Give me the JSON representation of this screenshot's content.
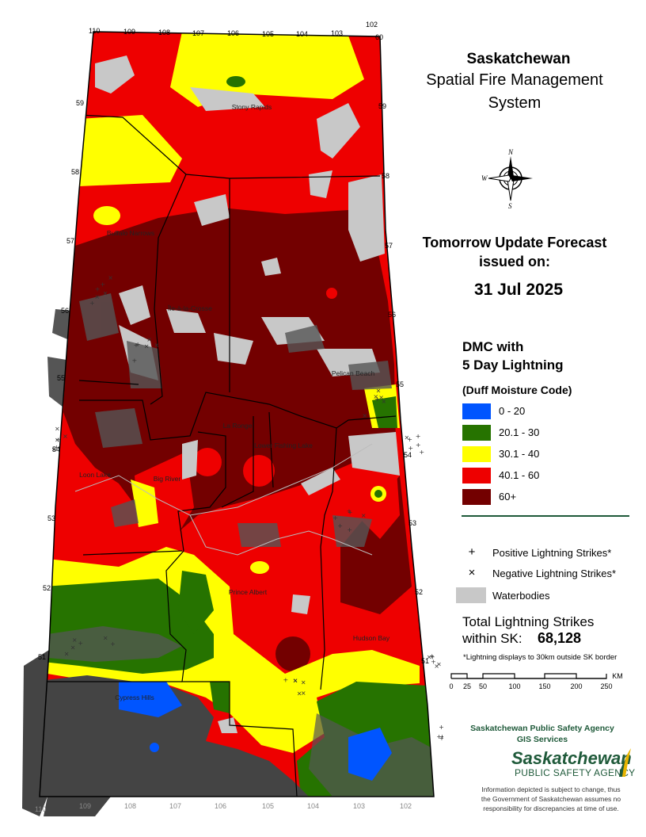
{
  "title": {
    "line1": "Saskatchewan",
    "line2": "Spatial Fire Management",
    "line3": "System"
  },
  "forecast": {
    "line1": "Tomorrow Update Forecast",
    "line2": "issued on:",
    "date": "31 Jul 2025"
  },
  "legend": {
    "heading1": "DMC with",
    "heading2": "5 Day Lightning",
    "subheading": "(Duff Moisture Code)",
    "classes": [
      {
        "label": "0 - 20",
        "color": "#0055ff"
      },
      {
        "label": "20.1 - 30",
        "color": "#267300"
      },
      {
        "label": "30.1 - 40",
        "color": "#ffff00"
      },
      {
        "label": "40.1 - 60",
        "color": "#ee0000"
      },
      {
        "label": "60+",
        "color": "#730000"
      }
    ],
    "positive_symbol": "+",
    "positive_label": "Positive Lightning Strikes*",
    "negative_symbol": "×",
    "negative_label": "Negative Lightning Strikes*",
    "waterbodies_label": "Waterbodies",
    "waterbody_color": "#c8c8c8"
  },
  "totals": {
    "label1": "Total Lightning Strikes",
    "label2": "within SK:",
    "value": "68,128",
    "note": "*Lightning displays to 30km outside SK border"
  },
  "scale": {
    "ticks": [
      "0",
      "25",
      "50",
      "100",
      "150",
      "200",
      "250"
    ],
    "unit": "KM"
  },
  "compass": {
    "n": "N",
    "w": "W",
    "s": "S"
  },
  "organization": {
    "line1": "Saskatchewan Public Safety Agency",
    "line2": "GIS  Services",
    "logo_line1": "Saskatchewan",
    "logo_line2": "PUBLIC SAFETY AGENCY"
  },
  "disclaimer": {
    "line1": "Information depicted is subject to change, thus",
    "line2": "the Government of Saskatchewan assumes no",
    "line3": "responsibility for discrepancies at time of use."
  },
  "map": {
    "longitudes_top": [
      "110",
      "109",
      "108",
      "107",
      "106",
      "105",
      "104",
      "103",
      "102"
    ],
    "longitudes_bottom": [
      "110",
      "109",
      "108",
      "107",
      "106",
      "105",
      "104",
      "103",
      "102"
    ],
    "corner_top_right": "60",
    "latitudes_left": [
      "59",
      "58",
      "57",
      "56",
      "55",
      "54",
      "53",
      "52",
      "51"
    ],
    "latitudes_right": [
      "59",
      "58",
      "57",
      "56",
      "55",
      "54",
      "53",
      "52",
      "51"
    ],
    "places": {
      "stony_rapids": "Stony Rapids",
      "buffalo_narrows": "Buffalo Narrows",
      "ile_a_la_crosse": "Île-à-la-Crosse",
      "la_ronge": "La Ronge",
      "lower_fishing_lake": "Lower Fishing Lake",
      "big_river": "Big River",
      "loon_lake": "Loon Lake",
      "prince_albert": "Prince Albert",
      "hudson_bay": "Hudson Bay",
      "cypress_hills": "Cypress Hills",
      "pelican_beach": "Pelican Beach"
    }
  }
}
